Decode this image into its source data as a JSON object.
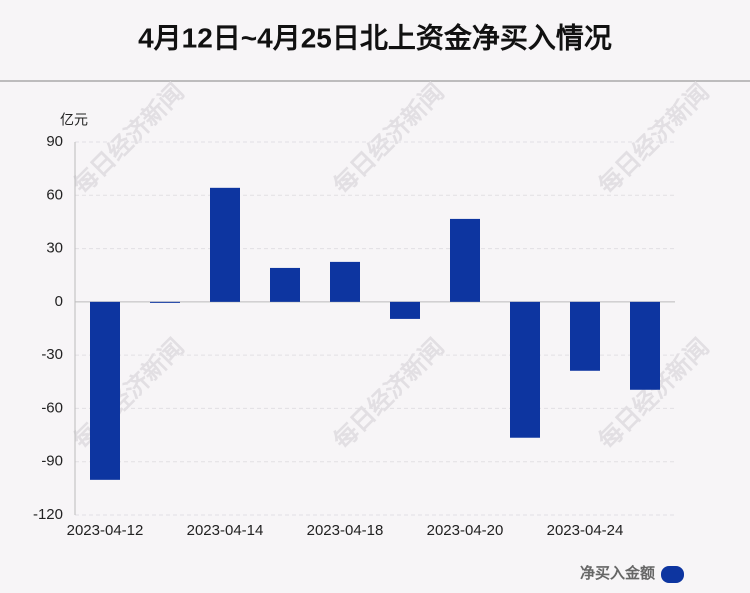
{
  "chart_data": {
    "type": "bar",
    "title": "4月12日~4月25日北上资金净买入情况",
    "y_label": "亿元",
    "watermark": "每日经济新闻",
    "categories": [
      "2023-04-12",
      null,
      "2023-04-14",
      null,
      "2023-04-18",
      null,
      "2023-04-20",
      null,
      "2023-04-24",
      null
    ],
    "series": [
      {
        "name": "净买入金额",
        "color": "#0d35a0",
        "values": [
          -100.2,
          -0.5,
          64.2,
          19.1,
          22.5,
          -9.6,
          46.7,
          -76.5,
          -38.8,
          -49.5
        ]
      }
    ],
    "ylim": [
      -120,
      90
    ],
    "yticks": [
      90,
      60,
      30,
      0,
      -30,
      -60,
      -90,
      -120
    ],
    "grid": true
  }
}
